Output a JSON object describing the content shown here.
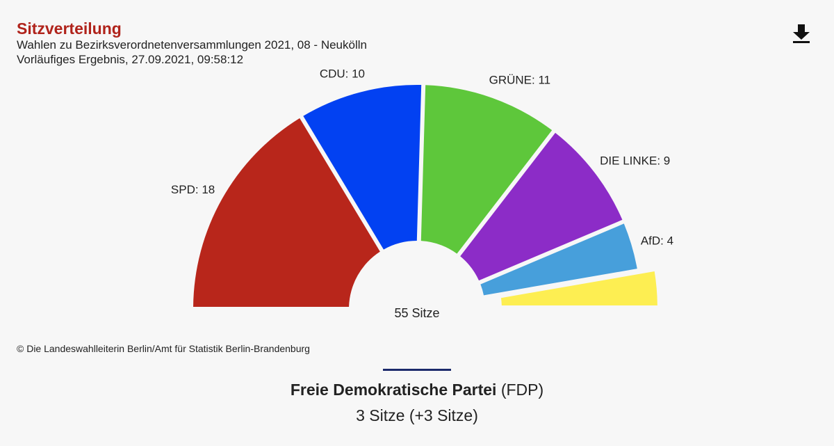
{
  "header": {
    "title": "Sitzverteilung",
    "subtitle": "Wahlen zu Bezirksverordnetenversammlungen 2021, 08 - Neukölln",
    "status": "Vorläufiges Ergebnis, 27.09.2021, 09:58:12"
  },
  "toolbar": {
    "download_icon": "download-icon"
  },
  "chart_data": {
    "type": "pie",
    "variant": "semicircle-parliament",
    "total_label": "55 Sitze",
    "total": 55,
    "slices": [
      {
        "name": "SPD",
        "label": "SPD: 18",
        "value": 18,
        "color": "#b8261b"
      },
      {
        "name": "CDU",
        "label": "CDU: 10",
        "value": 10,
        "color": "#0241f2"
      },
      {
        "name": "GRÜNE",
        "label": "GRÜNE: 11",
        "value": 11,
        "color": "#5ec73b"
      },
      {
        "name": "DIE LINKE",
        "label": "DIE LINKE: 9",
        "value": 9,
        "color": "#8c2cc7"
      },
      {
        "name": "AfD",
        "label": "AfD: 4",
        "value": 4,
        "color": "#479fdb"
      },
      {
        "name": "FDP",
        "label": "",
        "value": 3,
        "color": "#fdee52",
        "selected": true
      }
    ]
  },
  "footer": {
    "credit": "© Die Landeswahlleiterin Berlin/Amt für Statistik Berlin-Brandenburg"
  },
  "detail": {
    "party_full": "Freie Demokratische Partei",
    "party_short": "(FDP)",
    "seats": "3 Sitze (+3 Sitze)"
  }
}
